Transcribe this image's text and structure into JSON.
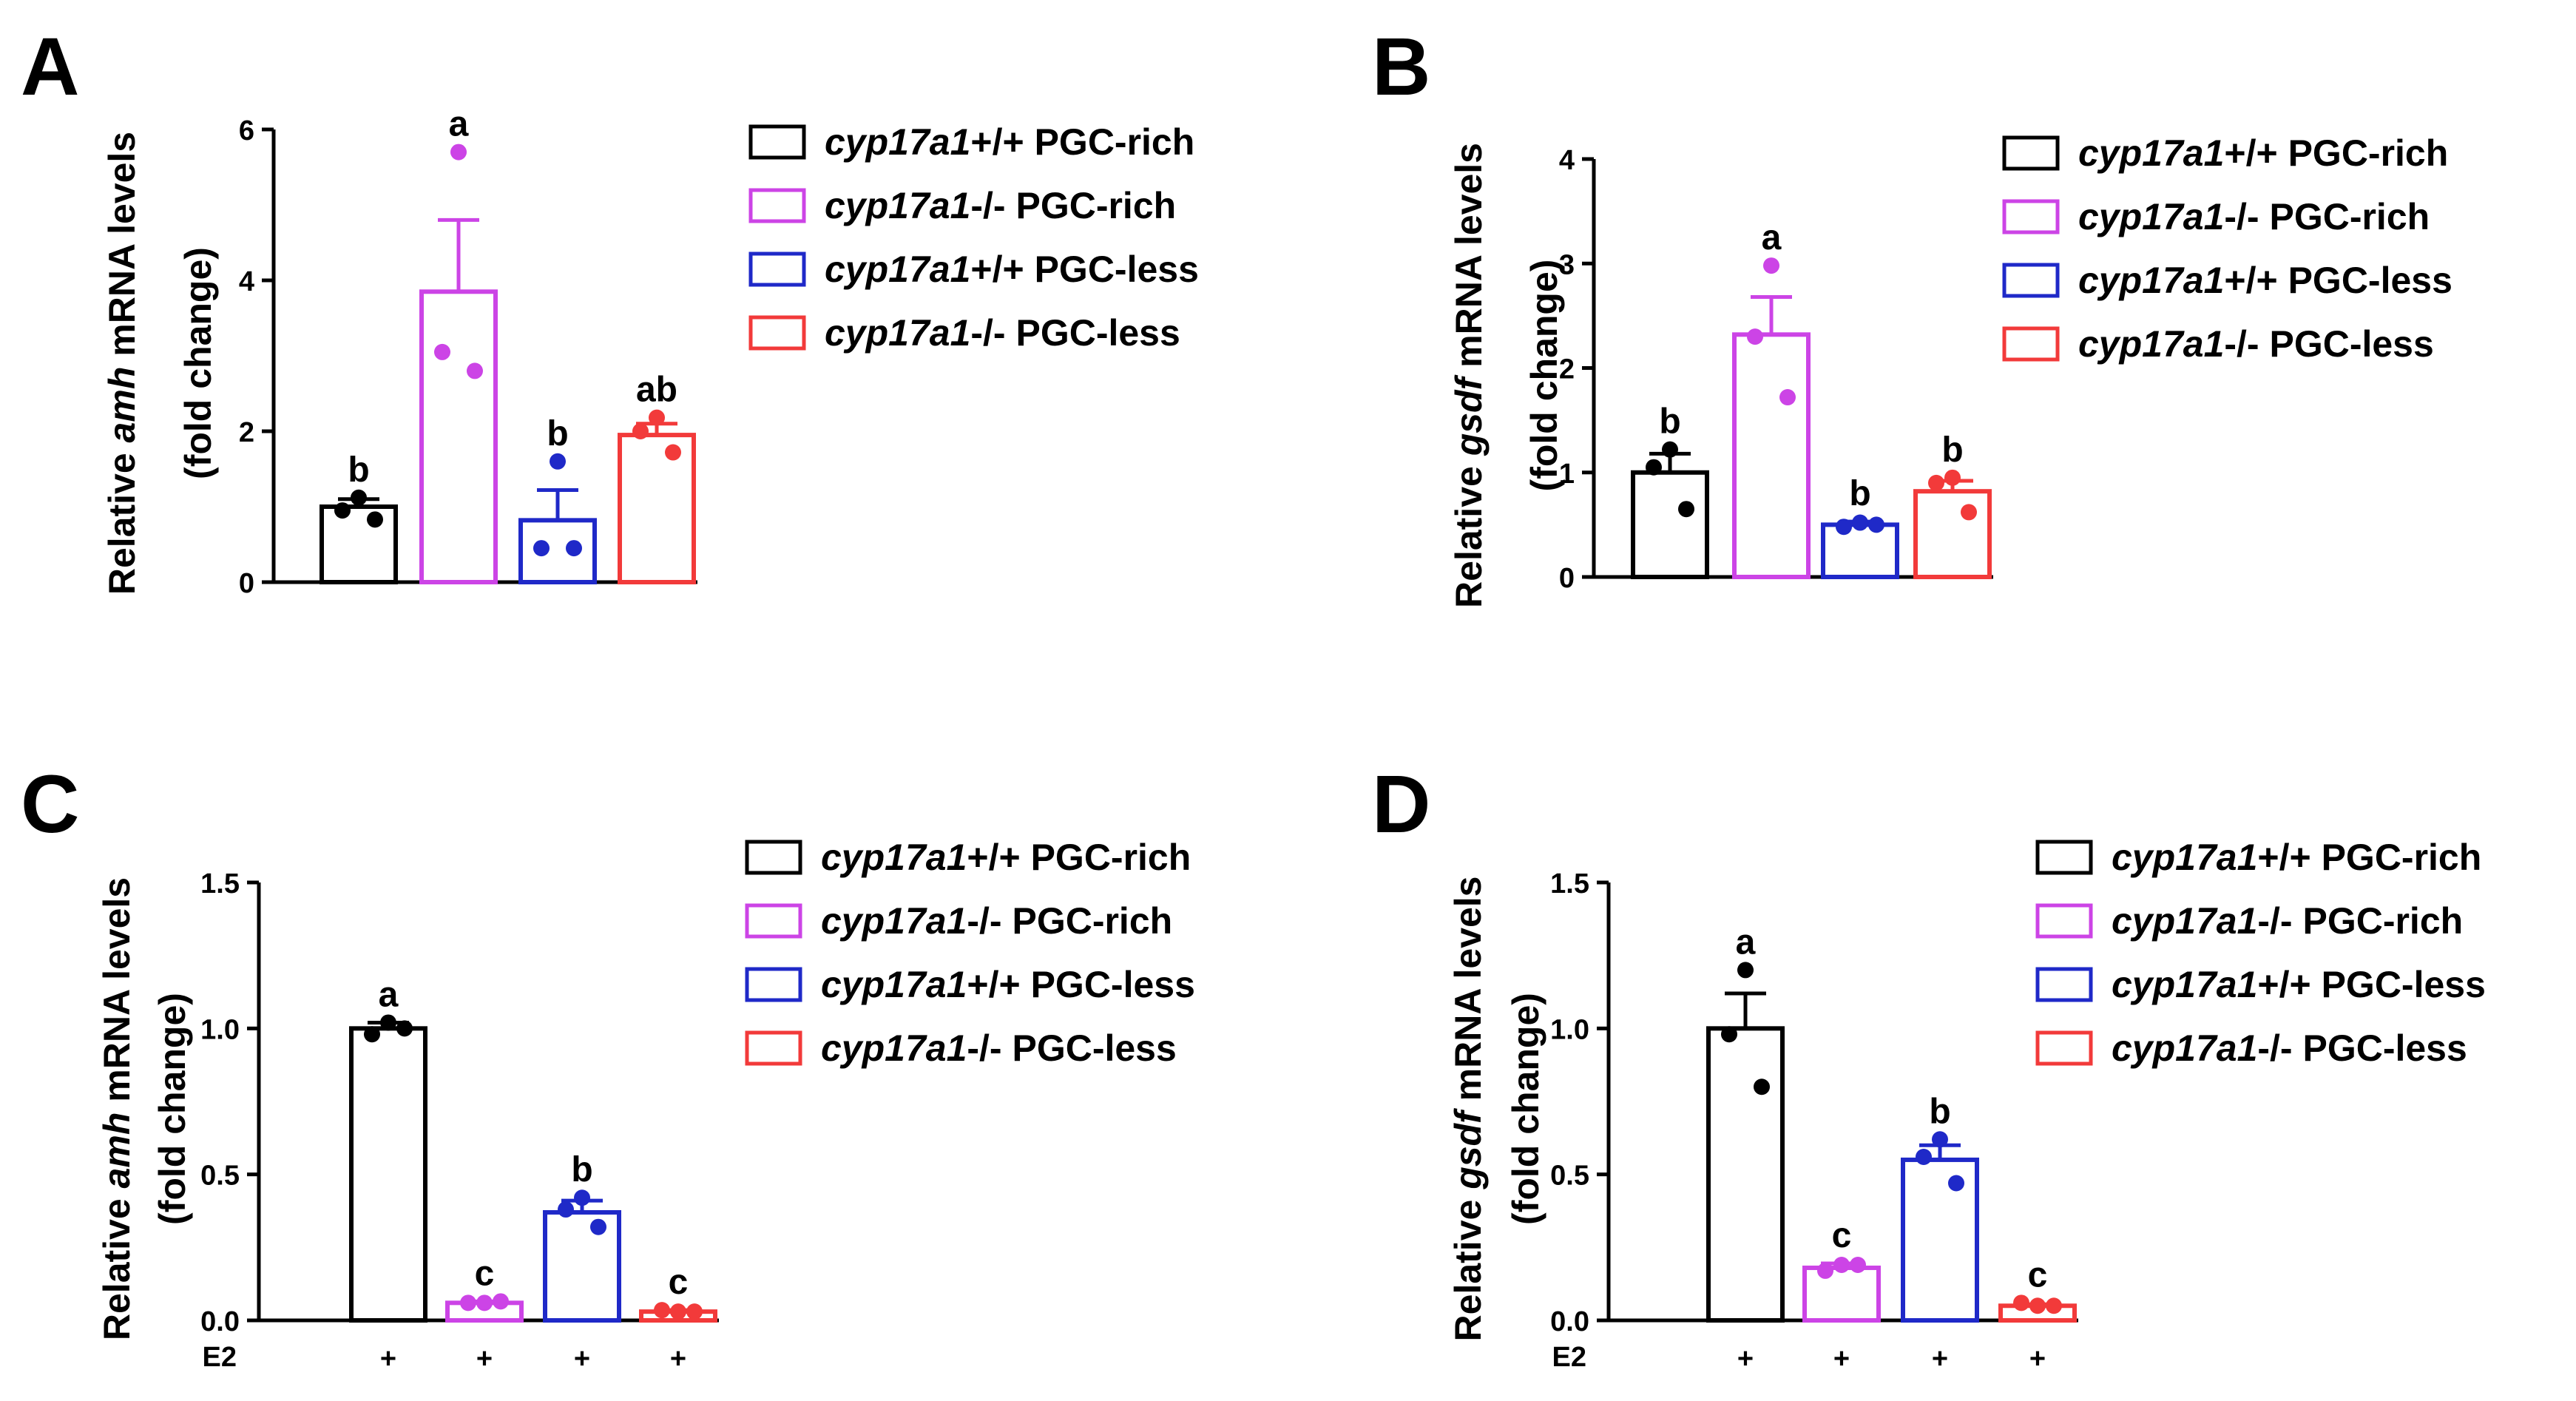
{
  "legend_series": [
    {
      "gene": "cyp17a1",
      "suffix": "+/+ PGC-rich",
      "color": "#000000"
    },
    {
      "gene": "cyp17a1",
      "suffix": "-/- PGC-rich",
      "color": "#CC44E6"
    },
    {
      "gene": "cyp17a1",
      "suffix": "+/+ PGC-less",
      "color": "#1F29C8"
    },
    {
      "gene": "cyp17a1",
      "suffix": "-/- PGC-less",
      "color": "#F23A3A"
    }
  ],
  "chart_data": [
    {
      "panel": "A",
      "type": "bar",
      "ylabel_prefix": "Relative ",
      "ylabel_gene": "amh",
      "ylabel_suffix": " mRNA levels",
      "ylabel_line2": "(fold change)",
      "ylim": [
        0,
        6
      ],
      "ticks": [
        "0",
        "2",
        "4",
        "6"
      ],
      "tick_values": [
        0,
        2,
        4,
        6
      ],
      "xlabel_left": "",
      "x_marks": [],
      "bars": [
        {
          "value": 1.0,
          "sem": 0.1,
          "sig": "b",
          "points": [
            1.12,
            0.95,
            0.83
          ]
        },
        {
          "value": 3.85,
          "sem": 0.95,
          "sig": "a",
          "points": [
            5.7,
            3.05,
            2.8
          ]
        },
        {
          "value": 0.82,
          "sem": 0.4,
          "sig": "b",
          "points": [
            1.6,
            0.45,
            0.45
          ]
        },
        {
          "value": 1.95,
          "sem": 0.15,
          "sig": "ab",
          "points": [
            2.18,
            2.0,
            1.72
          ]
        }
      ]
    },
    {
      "panel": "B",
      "type": "bar",
      "ylabel_prefix": "Relative ",
      "ylabel_gene": "gsdf",
      "ylabel_suffix": " mRNA levels",
      "ylabel_line2": "(fold change)",
      "ylim": [
        0,
        4
      ],
      "ticks": [
        "0",
        "1",
        "2",
        "3",
        "4"
      ],
      "tick_values": [
        0,
        1,
        2,
        3,
        4
      ],
      "xlabel_left": "",
      "x_marks": [],
      "bars": [
        {
          "value": 1.0,
          "sem": 0.18,
          "sig": "b",
          "points": [
            1.22,
            1.05,
            0.65
          ]
        },
        {
          "value": 2.32,
          "sem": 0.36,
          "sig": "a",
          "points": [
            2.98,
            2.3,
            1.72
          ]
        },
        {
          "value": 0.5,
          "sem": 0.03,
          "sig": "b",
          "points": [
            0.52,
            0.48,
            0.5
          ]
        },
        {
          "value": 0.82,
          "sem": 0.1,
          "sig": "b",
          "points": [
            0.95,
            0.9,
            0.62
          ]
        }
      ]
    },
    {
      "panel": "C",
      "type": "bar",
      "ylabel_prefix": "Relative ",
      "ylabel_gene": "amh",
      "ylabel_suffix": " mRNA levels",
      "ylabel_line2": "(fold change)",
      "ylim": [
        0,
        1.5
      ],
      "ticks": [
        "0.0",
        "0.5",
        "1.0",
        "1.5"
      ],
      "tick_values": [
        0,
        0.5,
        1.0,
        1.5
      ],
      "xlabel_left": "E2",
      "x_marks": [
        "+",
        "+",
        "+",
        "+"
      ],
      "bars": [
        {
          "value": 1.0,
          "sem": 0.02,
          "sig": "a",
          "points": [
            1.02,
            0.98,
            1.0
          ]
        },
        {
          "value": 0.06,
          "sem": 0.005,
          "sig": "c",
          "points": [
            0.06,
            0.06,
            0.065
          ]
        },
        {
          "value": 0.37,
          "sem": 0.04,
          "sig": "b",
          "points": [
            0.42,
            0.38,
            0.32
          ]
        },
        {
          "value": 0.03,
          "sem": 0.005,
          "sig": "c",
          "points": [
            0.03,
            0.035,
            0.03
          ]
        }
      ]
    },
    {
      "panel": "D",
      "type": "bar",
      "ylabel_prefix": "Relative ",
      "ylabel_gene": "gsdf",
      "ylabel_suffix": " mRNA levels",
      "ylabel_line2": "(fold change)",
      "ylim": [
        0,
        1.5
      ],
      "ticks": [
        "0.0",
        "0.5",
        "1.0",
        "1.5"
      ],
      "tick_values": [
        0,
        0.5,
        1.0,
        1.5
      ],
      "xlabel_left": "E2",
      "x_marks": [
        "+",
        "+",
        "+",
        "+"
      ],
      "bars": [
        {
          "value": 1.0,
          "sem": 0.12,
          "sig": "a",
          "points": [
            1.2,
            0.98,
            0.8
          ]
        },
        {
          "value": 0.18,
          "sem": 0.015,
          "sig": "c",
          "points": [
            0.19,
            0.17,
            0.19
          ]
        },
        {
          "value": 0.55,
          "sem": 0.05,
          "sig": "b",
          "points": [
            0.62,
            0.56,
            0.47
          ]
        },
        {
          "value": 0.05,
          "sem": 0.005,
          "sig": "c",
          "points": [
            0.05,
            0.06,
            0.05
          ]
        }
      ]
    }
  ]
}
